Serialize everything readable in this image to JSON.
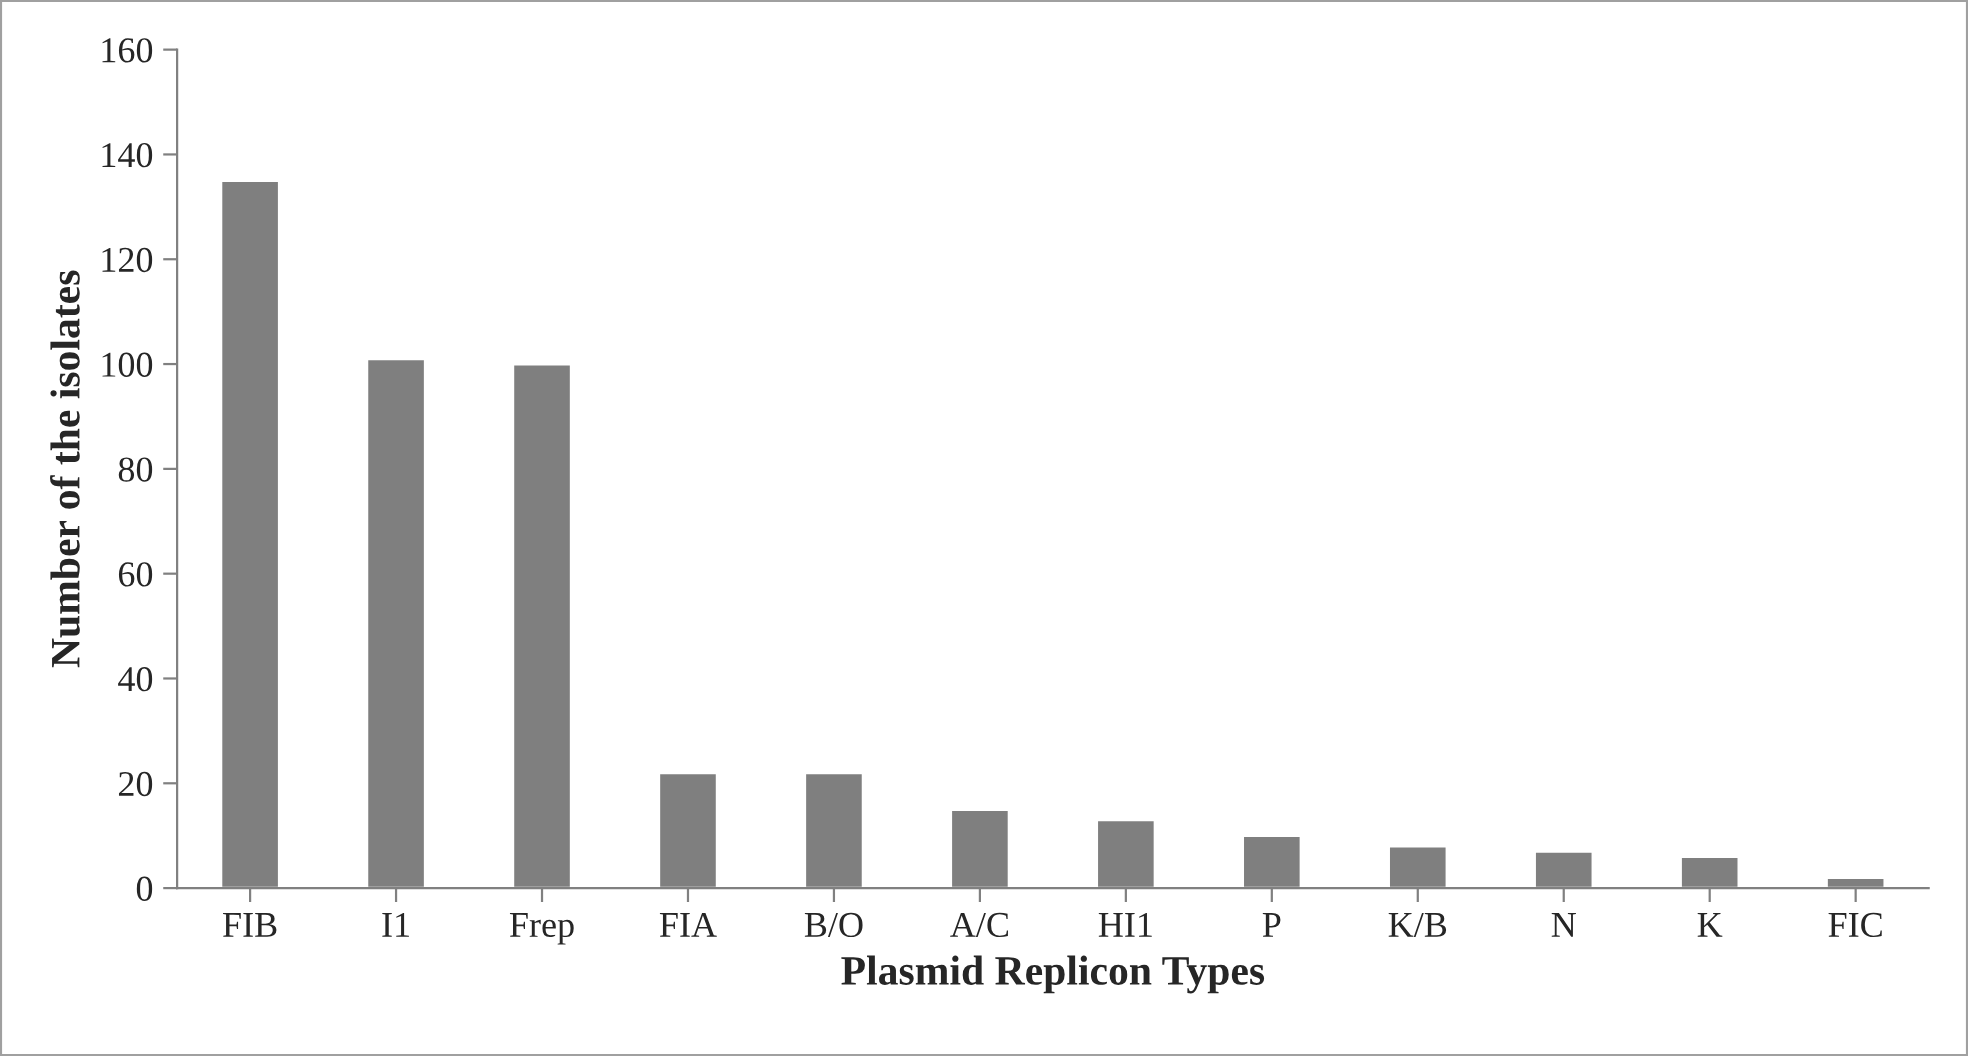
{
  "chart_data": {
    "type": "bar",
    "xlabel": "Plasmid Replicon Types",
    "ylabel": "Number of the isolates",
    "categories": [
      "FIB",
      "I1",
      "Frep",
      "FIA",
      "B/O",
      "A/C",
      "HI1",
      "P",
      "K/B",
      "N",
      "K",
      "FIC"
    ],
    "values": [
      135,
      101,
      100,
      22,
      22,
      15,
      13,
      10,
      8,
      7,
      6,
      2
    ],
    "color": "#7f7f7f",
    "ylim": [
      0,
      160
    ],
    "yticks": [
      0,
      20,
      40,
      60,
      80,
      100,
      120,
      140,
      160
    ],
    "grid": false,
    "legend": false
  }
}
